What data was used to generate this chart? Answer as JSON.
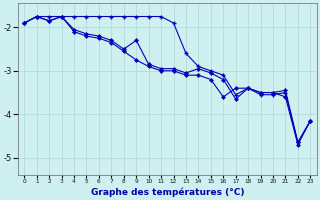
{
  "background_color": "#cff0f0",
  "grid_color": "#aad8d8",
  "line_color": "#0000bb",
  "xlabel": "Graphe des températures (°C)",
  "xlabel_fontsize": 6.5,
  "ylim": [
    -5.4,
    -1.45
  ],
  "xlim": [
    -0.5,
    23.5
  ],
  "yticks": [
    -5,
    -4,
    -3,
    -2
  ],
  "xtick_labels": [
    "0",
    "1",
    "2",
    "3",
    "4",
    "5",
    "6",
    "7",
    "8",
    "9",
    "10",
    "11",
    "12",
    "13",
    "14",
    "15",
    "16",
    "17",
    "18",
    "19",
    "20",
    "21",
    "22",
    "23"
  ],
  "series1_x": [
    0,
    1,
    2,
    3,
    4,
    5,
    6,
    7,
    8,
    9,
    10,
    11,
    12,
    13,
    14,
    15,
    16,
    17,
    18,
    19,
    20,
    21,
    22,
    23
  ],
  "series1_y": [
    -1.9,
    -1.75,
    -1.75,
    -1.75,
    -1.75,
    -1.75,
    -1.75,
    -1.75,
    -1.75,
    -1.75,
    -1.75,
    -1.75,
    -1.9,
    -2.6,
    -2.9,
    -3.0,
    -3.1,
    -3.55,
    -3.4,
    -3.55,
    -3.55,
    -3.5,
    -4.65,
    -4.15
  ],
  "series2_x": [
    0,
    1,
    2,
    3,
    4,
    5,
    6,
    7,
    8,
    9,
    10,
    11,
    12,
    13,
    14,
    15,
    16,
    17,
    18,
    19,
    20,
    21,
    22,
    23
  ],
  "series2_y": [
    -1.9,
    -1.75,
    -1.85,
    -1.75,
    -2.05,
    -2.15,
    -2.2,
    -2.3,
    -2.5,
    -2.3,
    -2.85,
    -2.95,
    -2.95,
    -3.05,
    -2.95,
    -3.05,
    -3.2,
    -3.65,
    -3.4,
    -3.5,
    -3.5,
    -3.45,
    -4.65,
    -4.15
  ],
  "series3_x": [
    0,
    1,
    2,
    3,
    4,
    5,
    6,
    7,
    8,
    9,
    10,
    11,
    12,
    13,
    14,
    15,
    16,
    17,
    18,
    19,
    20,
    21,
    22,
    23
  ],
  "series3_y": [
    -1.9,
    -1.75,
    -1.85,
    -1.75,
    -2.1,
    -2.2,
    -2.25,
    -2.35,
    -2.55,
    -2.75,
    -2.9,
    -3.0,
    -3.0,
    -3.1,
    -3.1,
    -3.2,
    -3.6,
    -3.4,
    -3.4,
    -3.5,
    -3.5,
    -3.6,
    -4.7,
    -4.15
  ]
}
